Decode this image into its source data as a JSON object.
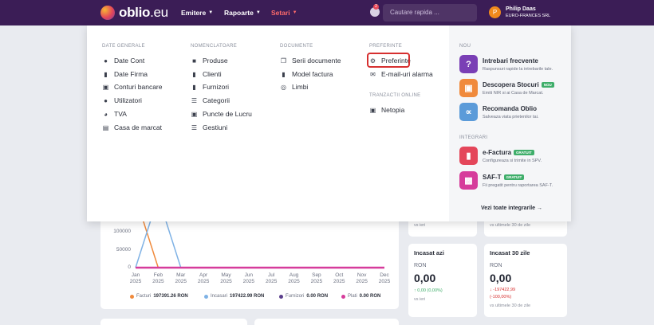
{
  "header": {
    "logo_bold": "oblio",
    "logo_light": ".eu",
    "nav": [
      {
        "label": "Emitere"
      },
      {
        "label": "Rapoarte"
      },
      {
        "label": "Setari"
      }
    ],
    "notification_count": "2",
    "search_placeholder": "Cautare rapida ...",
    "user_initial": "P",
    "user_name": "Philip Daas",
    "user_company": "EURO-FRANCES SRL"
  },
  "menu": {
    "date_generale": {
      "heading": "DATE GENERALE",
      "items": [
        "Date Cont",
        "Date Firma",
        "Conturi bancare",
        "Utilizatori",
        "TVA",
        "Casa de marcat"
      ]
    },
    "nomenclatoare": {
      "heading": "NOMENCLATOARE",
      "items": [
        "Produse",
        "Clienti",
        "Furnizori",
        "Categorii",
        "Puncte de Lucru",
        "Gestiuni"
      ]
    },
    "documente": {
      "heading": "DOCUMENTE",
      "items": [
        "Serii documente",
        "Model factura",
        "Limbi"
      ]
    },
    "preferinte": {
      "heading": "PREFERINTE",
      "items": [
        "Preferinte",
        "E-mail-uri alarma"
      ]
    },
    "tranzactii": {
      "heading": "TRANZACTII ONLINE",
      "items": [
        "Netopia"
      ]
    }
  },
  "side": {
    "nou_heading": "NOU",
    "nou_items": [
      {
        "title": "Intrebari frecvente",
        "desc": "Raspunsuri rapide la intrebarile tale.",
        "tag": ""
      },
      {
        "title": "Descopera Stocuri",
        "desc": "Emiti NIR si ai Casa de Marcat.",
        "tag": "NOU"
      },
      {
        "title": "Recomanda Oblio",
        "desc": "Salveaza viata prietenilor tai.",
        "tag": ""
      }
    ],
    "integrari_heading": "INTEGRARI",
    "integrari_items": [
      {
        "title": "e-Factura",
        "desc": "Configureaza si trimite in SPV.",
        "tag": "GRATUIT"
      },
      {
        "title": "SAF-T",
        "desc": "Fii pregatit pentru raportarea SAF-T.",
        "tag": "GRATUIT"
      }
    ],
    "see_all": "Vezi toate integrarile →"
  },
  "dashboard": {
    "chart_data": {
      "type": "line",
      "title": "",
      "x": [
        "Jan 2025",
        "Feb 2025",
        "Mar 2025",
        "Apr 2025",
        "May 2025",
        "Jun 2025",
        "Jul 2025",
        "Aug 2025",
        "Sep 2025",
        "Oct 2025",
        "Nov 2025",
        "Dec 2025"
      ],
      "x_month": [
        "Jan",
        "Feb",
        "Mar",
        "Apr",
        "May",
        "Jun",
        "Jul",
        "Aug",
        "Sep",
        "Oct",
        "Nov",
        "Dec"
      ],
      "x_year": "2025",
      "yticks": [
        "100000",
        "50000",
        "0"
      ],
      "ylim": [
        0,
        200000
      ],
      "series": [
        {
          "name": "Facturi",
          "total": "197391.26 RON",
          "color": "#f08a3c",
          "values": [
            197391.26,
            0,
            0,
            0,
            0,
            0,
            0,
            0,
            0,
            0,
            0,
            0
          ]
        },
        {
          "name": "Incasari",
          "total": "197422.99 RON",
          "color": "#7fb2e5",
          "values": [
            0,
            197422.99,
            0,
            0,
            0,
            0,
            0,
            0,
            0,
            0,
            0,
            0
          ]
        },
        {
          "name": "Furnizori",
          "total": "0.00 RON",
          "color": "#5b3f8c",
          "values": [
            0,
            0,
            0,
            0,
            0,
            0,
            0,
            0,
            0,
            0,
            0,
            0
          ]
        },
        {
          "name": "Plati",
          "total": "0.00 RON",
          "color": "#d63c9b",
          "values": [
            0,
            0,
            0,
            0,
            0,
            0,
            0,
            0,
            0,
            0,
            0,
            0
          ]
        }
      ]
    },
    "top_left_sub": "vs ieri",
    "top_right_sub": "vs ultimele 30 de zile",
    "stats": [
      {
        "title": "Incasat azi",
        "unit": "RON",
        "value": "0,00",
        "change": "↑ 0,00 (0,00%)",
        "change_color": "#3fae6a",
        "sub": "vs ieri"
      },
      {
        "title": "Incasat 30 zile",
        "unit": "RON",
        "value": "0,00",
        "change": "↓ -197422,99",
        "change2": "(-100,00%)",
        "change_color": "#d62f2f",
        "sub": "vs ultimele 30 de zile"
      }
    ]
  }
}
